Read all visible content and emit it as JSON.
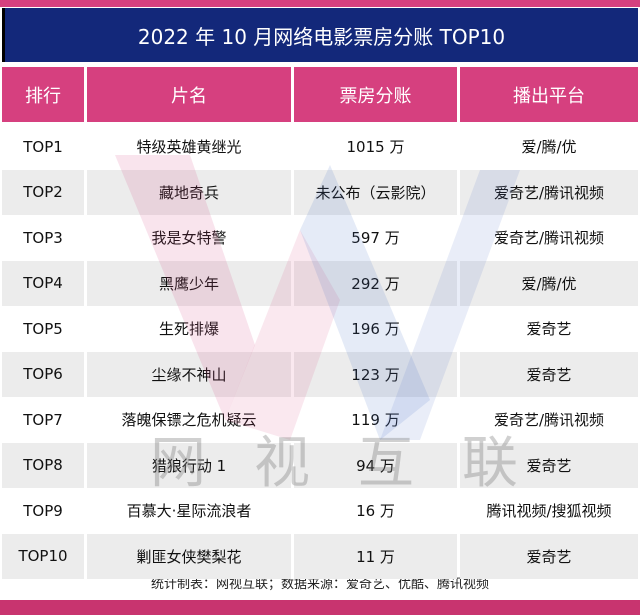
{
  "title": "2022 年 10 月网络电影票房分账 TOP10",
  "headers": [
    "排行",
    "片名",
    "票房分账",
    "播出平台"
  ],
  "rows": [
    [
      "TOP1",
      "特级英雄黄继光",
      "1015 万",
      "爱/腾/优"
    ],
    [
      "TOP2",
      "藏地奇兵",
      "未公布（云影院）",
      "爱奇艺/腾讯视频"
    ],
    [
      "TOP3",
      "我是女特警",
      "597 万",
      "爱奇艺/腾讯视频"
    ],
    [
      "TOP4",
      "黑鹰少年",
      "292 万",
      "爱/腾/优"
    ],
    [
      "TOP5",
      "生死排爆",
      "196 万",
      "爱奇艺"
    ],
    [
      "TOP6",
      "尘缘不神山",
      "123 万",
      "爱奇艺"
    ],
    [
      "TOP7",
      "落魄保镖之危机疑云",
      "119 万",
      "爱奇艺/腾讯视频"
    ],
    [
      "TOP8",
      "猎狼行动 1",
      "94 万",
      "爱奇艺"
    ],
    [
      "TOP9",
      "百慕大·星际流浪者",
      "16 万",
      "腾讯视频/搜狐视频"
    ],
    [
      "TOP10",
      "剿匪女侠樊梨花",
      "11 万",
      "爱奇艺"
    ]
  ],
  "footer": "统计制表：网视互联；数据来源：爱奇艺、优酷、腾讯视频",
  "watermark": "网视互联",
  "colors": {
    "accent": "#d6407f",
    "title_bg": "#13287a",
    "alt_row": "#ececec"
  }
}
